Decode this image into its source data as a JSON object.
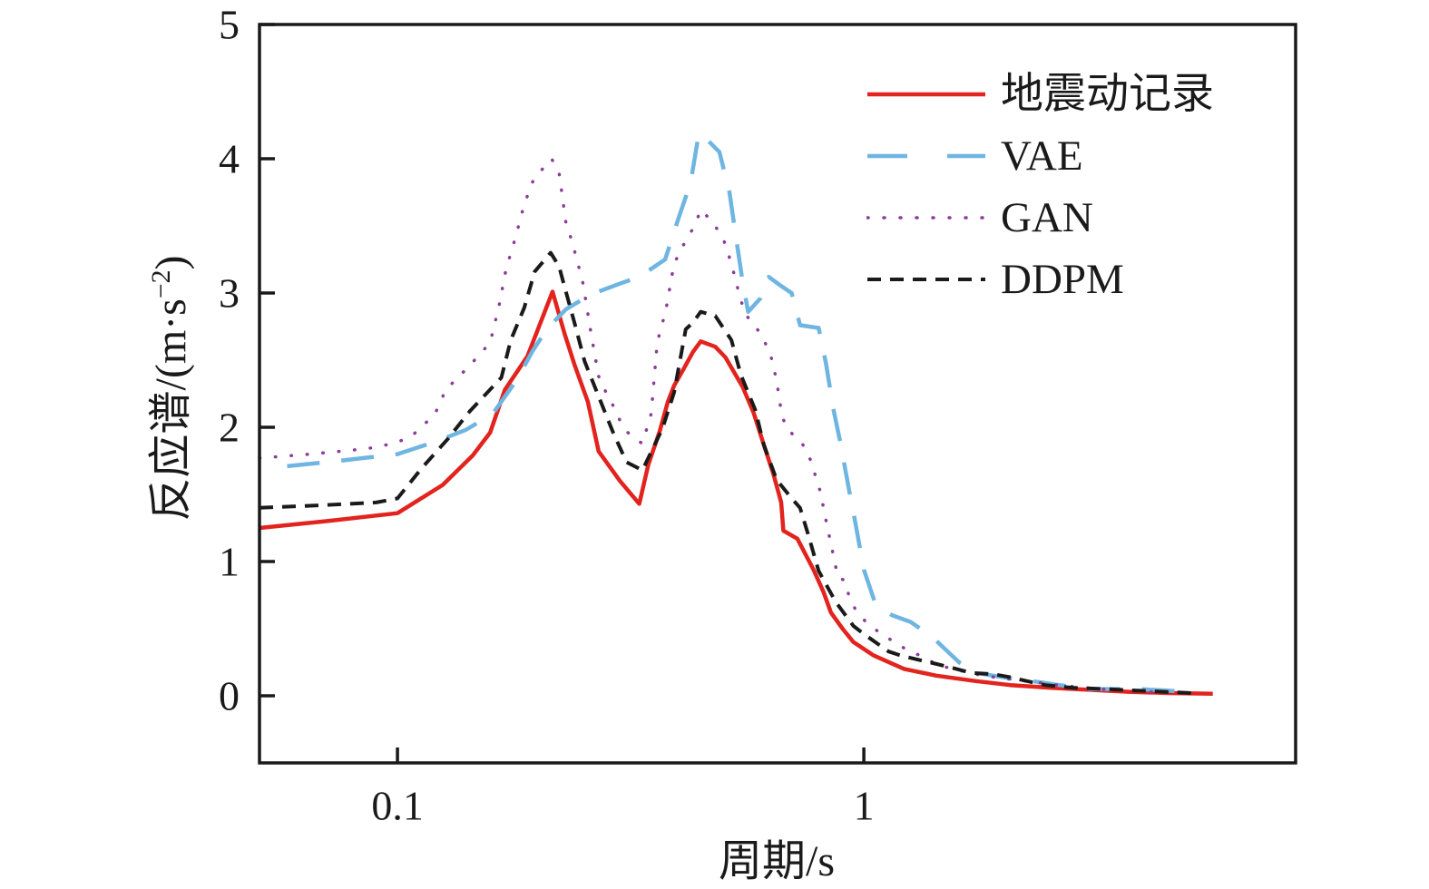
{
  "chart_data": {
    "type": "line",
    "title": "",
    "xlabel": "周期/s",
    "ylabel": "反应谱/(m·s⁻²)",
    "ylabel_parts": {
      "prefix": "反应谱/(m·s",
      "sup": "−2",
      "suffix": ")"
    },
    "x_scale": "log",
    "xlim": [
      0.0506,
      8.43
    ],
    "ylim": [
      -0.5,
      5
    ],
    "x_ticks": [
      0.1,
      1
    ],
    "x_tick_labels": [
      "0.1",
      "1"
    ],
    "y_ticks": [
      0,
      1,
      2,
      3,
      4,
      5
    ],
    "y_tick_labels": [
      "0",
      "1",
      "2",
      "3",
      "4",
      "5"
    ],
    "grid": false,
    "legend_position": "upper right",
    "axis_color": "#1a1a1a",
    "series": [
      {
        "name": "地震动记录",
        "color": "#e2231e",
        "line_style": "solid",
        "line_width": 4.5,
        "points": [
          [
            0.0506,
            1.25
          ],
          [
            0.07,
            1.3
          ],
          [
            0.1,
            1.36
          ],
          [
            0.125,
            1.57
          ],
          [
            0.145,
            1.79
          ],
          [
            0.158,
            1.96
          ],
          [
            0.17,
            2.28
          ],
          [
            0.19,
            2.53
          ],
          [
            0.215,
            3.01
          ],
          [
            0.228,
            2.7
          ],
          [
            0.24,
            2.46
          ],
          [
            0.256,
            2.19
          ],
          [
            0.27,
            1.82
          ],
          [
            0.3,
            1.6
          ],
          [
            0.33,
            1.43
          ],
          [
            0.345,
            1.72
          ],
          [
            0.365,
            1.97
          ],
          [
            0.38,
            2.19
          ],
          [
            0.392,
            2.31
          ],
          [
            0.41,
            2.43
          ],
          [
            0.43,
            2.56
          ],
          [
            0.447,
            2.64
          ],
          [
            0.48,
            2.6
          ],
          [
            0.505,
            2.52
          ],
          [
            0.55,
            2.3
          ],
          [
            0.58,
            2.11
          ],
          [
            0.61,
            1.87
          ],
          [
            0.64,
            1.65
          ],
          [
            0.665,
            1.44
          ],
          [
            0.672,
            1.23
          ],
          [
            0.72,
            1.17
          ],
          [
            0.78,
            0.94
          ],
          [
            0.82,
            0.77
          ],
          [
            0.85,
            0.62
          ],
          [
            0.9,
            0.5
          ],
          [
            0.95,
            0.4
          ],
          [
            1.05,
            0.3
          ],
          [
            1.22,
            0.2
          ],
          [
            1.43,
            0.15
          ],
          [
            1.73,
            0.11
          ],
          [
            2.06,
            0.08
          ],
          [
            2.5,
            0.06
          ],
          [
            3.0,
            0.045
          ],
          [
            3.7,
            0.03
          ],
          [
            4.5,
            0.02
          ],
          [
            5.6,
            0.015
          ]
        ]
      },
      {
        "name": "VAE",
        "color": "#6fb5e2",
        "line_style": "longdash",
        "line_width": 4.5,
        "points": [
          [
            0.058,
            1.71
          ],
          [
            0.075,
            1.75
          ],
          [
            0.1,
            1.8
          ],
          [
            0.12,
            1.89
          ],
          [
            0.14,
            1.98
          ],
          [
            0.16,
            2.1
          ],
          [
            0.18,
            2.35
          ],
          [
            0.195,
            2.57
          ],
          [
            0.21,
            2.74
          ],
          [
            0.23,
            2.88
          ],
          [
            0.26,
            2.99
          ],
          [
            0.3,
            3.07
          ],
          [
            0.33,
            3.12
          ],
          [
            0.375,
            3.25
          ],
          [
            0.4,
            3.55
          ],
          [
            0.425,
            3.82
          ],
          [
            0.443,
            4.19
          ],
          [
            0.465,
            4.13
          ],
          [
            0.49,
            4.05
          ],
          [
            0.515,
            3.75
          ],
          [
            0.53,
            3.45
          ],
          [
            0.55,
            3.08
          ],
          [
            0.565,
            2.86
          ],
          [
            0.6,
            2.96
          ],
          [
            0.625,
            3.12
          ],
          [
            0.66,
            3.06
          ],
          [
            0.7,
            3.0
          ],
          [
            0.73,
            2.76
          ],
          [
            0.8,
            2.74
          ],
          [
            0.83,
            2.47
          ],
          [
            0.86,
            2.14
          ],
          [
            0.89,
            1.89
          ],
          [
            0.93,
            1.53
          ],
          [
            0.96,
            1.28
          ],
          [
            1.0,
            0.94
          ],
          [
            1.06,
            0.68
          ],
          [
            1.15,
            0.6
          ],
          [
            1.26,
            0.55
          ],
          [
            1.4,
            0.44
          ],
          [
            1.6,
            0.25
          ],
          [
            1.74,
            0.17
          ],
          [
            2.06,
            0.13
          ],
          [
            2.4,
            0.1
          ],
          [
            2.62,
            0.08
          ],
          [
            3.07,
            0.05
          ],
          [
            3.9,
            0.05
          ],
          [
            4.65,
            0.035
          ]
        ]
      },
      {
        "name": "GAN",
        "color": "#8b3d98",
        "line_style": "dot",
        "line_width": 3.5,
        "points": [
          [
            0.0506,
            1.77
          ],
          [
            0.065,
            1.8
          ],
          [
            0.08,
            1.83
          ],
          [
            0.09,
            1.85
          ],
          [
            0.1,
            1.89
          ],
          [
            0.107,
            1.93
          ],
          [
            0.113,
            2.01
          ],
          [
            0.12,
            2.09
          ],
          [
            0.127,
            2.28
          ],
          [
            0.142,
            2.45
          ],
          [
            0.158,
            2.63
          ],
          [
            0.165,
            2.9
          ],
          [
            0.171,
            3.18
          ],
          [
            0.179,
            3.41
          ],
          [
            0.187,
            3.66
          ],
          [
            0.196,
            3.85
          ],
          [
            0.214,
            4.0
          ],
          [
            0.222,
            3.9
          ],
          [
            0.23,
            3.51
          ],
          [
            0.236,
            3.4
          ],
          [
            0.245,
            3.19
          ],
          [
            0.25,
            3.07
          ],
          [
            0.26,
            2.7
          ],
          [
            0.27,
            2.38
          ],
          [
            0.28,
            2.26
          ],
          [
            0.29,
            2.16
          ],
          [
            0.3,
            2.05
          ],
          [
            0.312,
            1.96
          ],
          [
            0.324,
            1.91
          ],
          [
            0.335,
            1.88
          ],
          [
            0.35,
            2.1
          ],
          [
            0.36,
            2.6
          ],
          [
            0.366,
            2.73
          ],
          [
            0.375,
            2.84
          ],
          [
            0.385,
            3.07
          ],
          [
            0.39,
            3.18
          ],
          [
            0.4,
            3.29
          ],
          [
            0.435,
            3.51
          ],
          [
            0.447,
            3.62
          ],
          [
            0.474,
            3.53
          ],
          [
            0.5,
            3.4
          ],
          [
            0.52,
            3.22
          ],
          [
            0.535,
            3.05
          ],
          [
            0.555,
            2.85
          ],
          [
            0.6,
            2.7
          ],
          [
            0.63,
            2.55
          ],
          [
            0.65,
            2.35
          ],
          [
            0.665,
            2.12
          ],
          [
            0.68,
            2.0
          ],
          [
            0.74,
            1.87
          ],
          [
            0.77,
            1.75
          ],
          [
            0.79,
            1.62
          ],
          [
            0.81,
            1.5
          ],
          [
            0.82,
            1.39
          ],
          [
            0.86,
            1.05
          ],
          [
            0.88,
            0.88
          ],
          [
            0.91,
            0.86
          ],
          [
            0.93,
            0.74
          ],
          [
            0.96,
            0.64
          ],
          [
            1.01,
            0.55
          ],
          [
            1.08,
            0.47
          ],
          [
            1.15,
            0.41
          ],
          [
            1.24,
            0.34
          ],
          [
            1.32,
            0.3
          ],
          [
            1.44,
            0.23
          ],
          [
            1.55,
            0.2
          ],
          [
            1.8,
            0.15
          ],
          [
            2.1,
            0.12
          ],
          [
            2.6,
            0.08
          ],
          [
            3.2,
            0.05
          ],
          [
            4.0,
            0.03
          ],
          [
            5.1,
            0.02
          ]
        ]
      },
      {
        "name": "DDPM",
        "color": "#1a1a1a",
        "line_style": "dash",
        "line_width": 4,
        "points": [
          [
            0.0506,
            1.4
          ],
          [
            0.07,
            1.42
          ],
          [
            0.09,
            1.44
          ],
          [
            0.1,
            1.47
          ],
          [
            0.113,
            1.7
          ],
          [
            0.128,
            1.91
          ],
          [
            0.143,
            2.12
          ],
          [
            0.167,
            2.37
          ],
          [
            0.175,
            2.65
          ],
          [
            0.187,
            2.89
          ],
          [
            0.197,
            3.16
          ],
          [
            0.213,
            3.3
          ],
          [
            0.222,
            3.2
          ],
          [
            0.228,
            3.05
          ],
          [
            0.24,
            2.77
          ],
          [
            0.252,
            2.49
          ],
          [
            0.27,
            2.23
          ],
          [
            0.29,
            1.96
          ],
          [
            0.31,
            1.74
          ],
          [
            0.335,
            1.68
          ],
          [
            0.37,
            1.99
          ],
          [
            0.392,
            2.26
          ],
          [
            0.415,
            2.73
          ],
          [
            0.43,
            2.78
          ],
          [
            0.447,
            2.86
          ],
          [
            0.48,
            2.83
          ],
          [
            0.52,
            2.65
          ],
          [
            0.545,
            2.39
          ],
          [
            0.585,
            2.13
          ],
          [
            0.61,
            1.87
          ],
          [
            0.65,
            1.61
          ],
          [
            0.7,
            1.47
          ],
          [
            0.73,
            1.4
          ],
          [
            0.76,
            1.2
          ],
          [
            0.8,
            0.93
          ],
          [
            0.87,
            0.7
          ],
          [
            0.95,
            0.52
          ],
          [
            1.0,
            0.46
          ],
          [
            1.13,
            0.33
          ],
          [
            1.2,
            0.3
          ],
          [
            1.34,
            0.26
          ],
          [
            1.42,
            0.24
          ],
          [
            1.58,
            0.2
          ],
          [
            1.7,
            0.17
          ],
          [
            1.9,
            0.16
          ],
          [
            2.05,
            0.14
          ],
          [
            2.3,
            0.1
          ],
          [
            2.45,
            0.08
          ],
          [
            2.8,
            0.06
          ],
          [
            3.3,
            0.05
          ],
          [
            3.8,
            0.04
          ],
          [
            4.4,
            0.03
          ],
          [
            5.05,
            0.02
          ]
        ]
      }
    ]
  }
}
